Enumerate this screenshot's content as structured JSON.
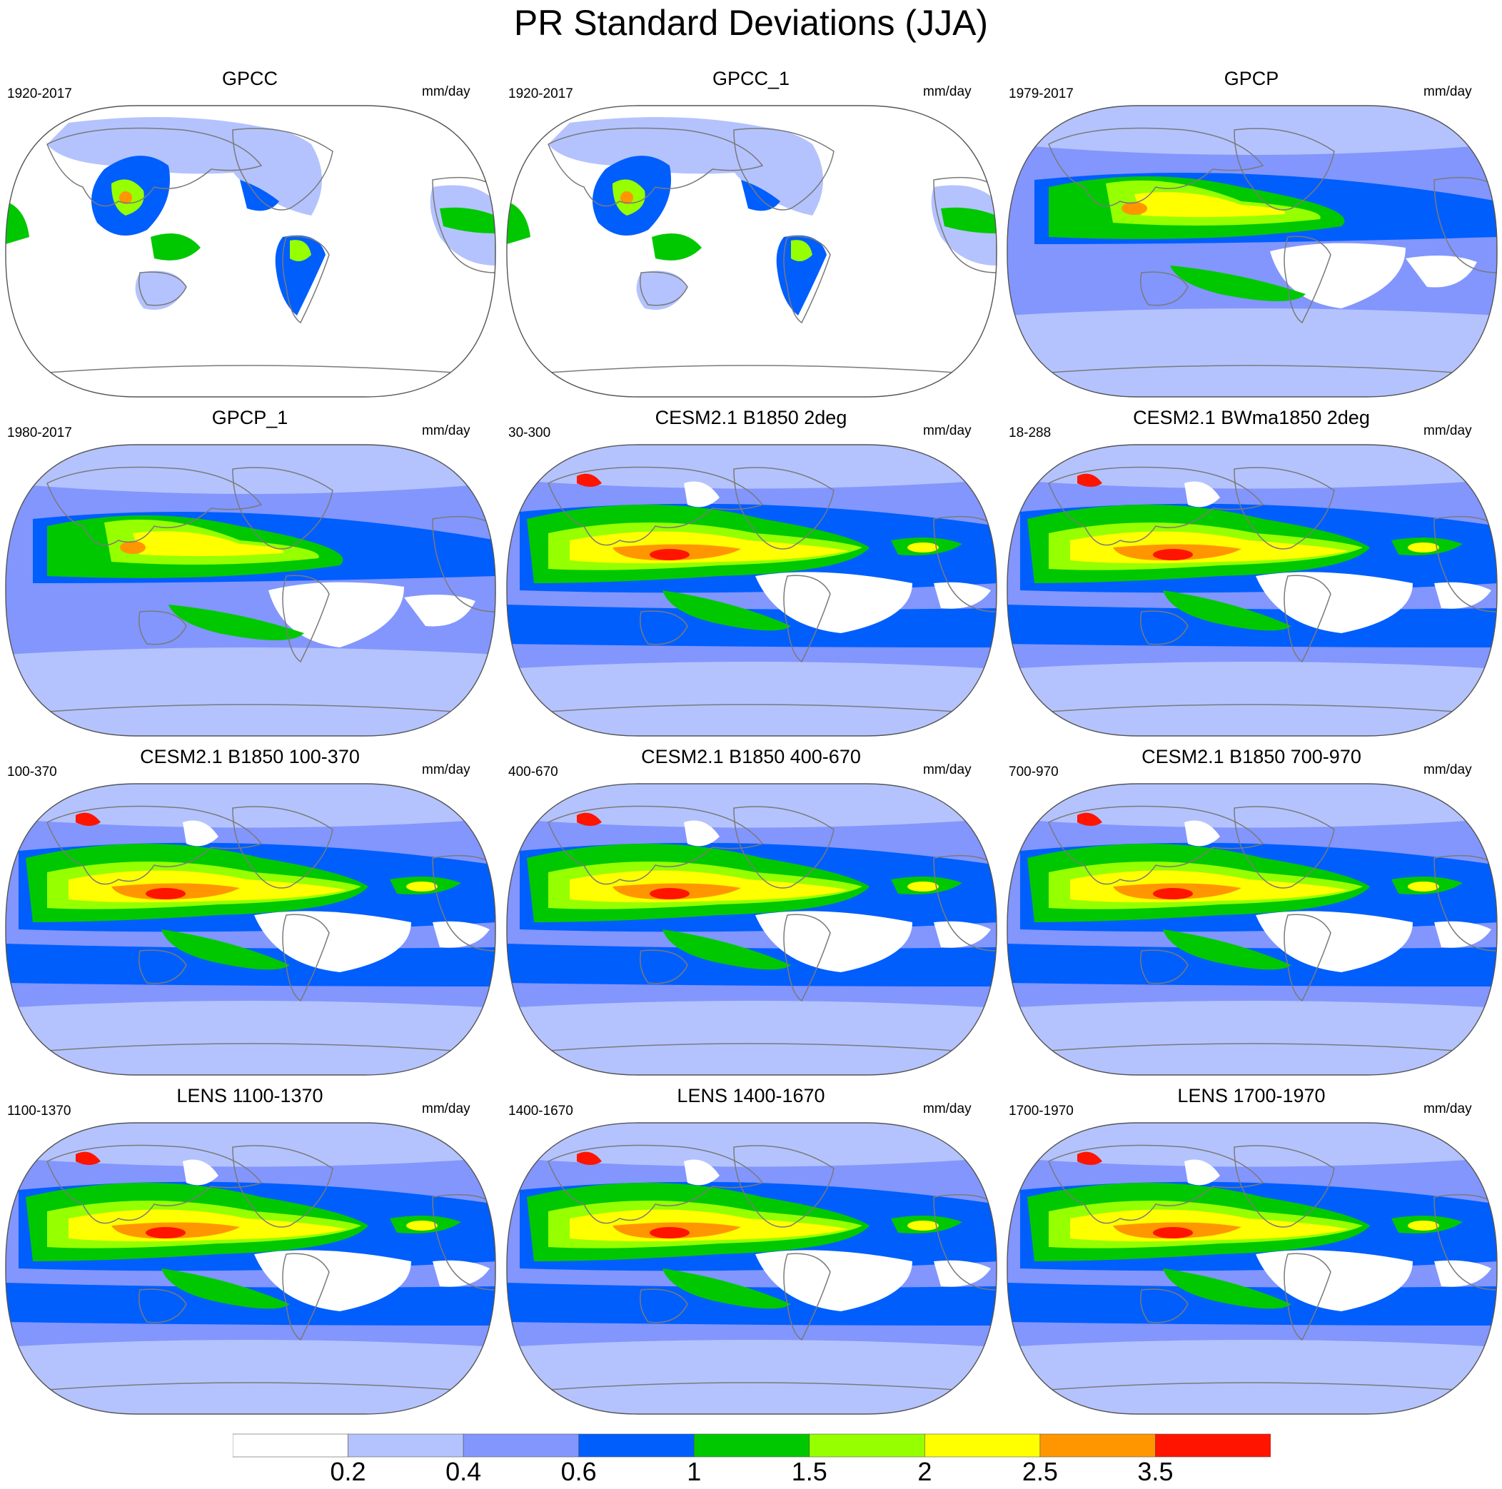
{
  "figure": {
    "title": "PR Standard Deviations (JJA)"
  },
  "panels": [
    {
      "title": "GPCC",
      "range": "1920-2017",
      "units": "mm/day",
      "source": "gpcc"
    },
    {
      "title": "GPCC_1",
      "range": "1920-2017",
      "units": "mm/day",
      "source": "gpcc"
    },
    {
      "title": "GPCP",
      "range": "1979-2017",
      "units": "mm/day",
      "source": "gpcp"
    },
    {
      "title": "GPCP_1",
      "range": "1980-2017",
      "units": "mm/day",
      "source": "gpcp"
    },
    {
      "title": "CESM2.1 B1850 2deg",
      "range": "30-300",
      "units": "mm/day",
      "source": "model"
    },
    {
      "title": "CESM2.1 BWma1850 2deg",
      "range": "18-288",
      "units": "mm/day",
      "source": "model"
    },
    {
      "title": "CESM2.1 B1850 100-370",
      "range": "100-370",
      "units": "mm/day",
      "source": "model"
    },
    {
      "title": "CESM2.1 B1850 400-670",
      "range": "400-670",
      "units": "mm/day",
      "source": "model"
    },
    {
      "title": "CESM2.1 B1850 700-970",
      "range": "700-970",
      "units": "mm/day",
      "source": "model"
    },
    {
      "title": "LENS 1100-1370",
      "range": "1100-1370",
      "units": "mm/day",
      "source": "model"
    },
    {
      "title": "LENS 1400-1670",
      "range": "1400-1670",
      "units": "mm/day",
      "source": "model"
    },
    {
      "title": "LENS 1700-1970",
      "range": "1700-1970",
      "units": "mm/day",
      "source": "model"
    }
  ],
  "colorbar": {
    "labels": [
      "0.2",
      "0.4",
      "0.6",
      "1",
      "1.5",
      "2",
      "2.5",
      "3.5"
    ],
    "colors": [
      "#ffffff",
      "#b4c3fd",
      "#8296fd",
      "#005efd",
      "#00c800",
      "#96ff00",
      "#ffff00",
      "#ff9600",
      "#ff1400"
    ]
  }
}
